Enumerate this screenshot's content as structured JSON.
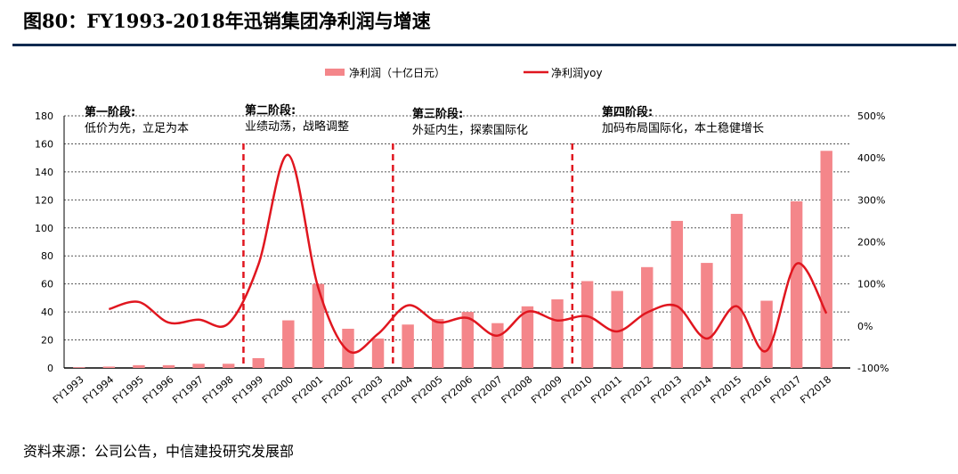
{
  "title": "图80：FY1993-2018年迅销集团净利润与增速",
  "source": "资料来源：公司公告，中信建投研究发展部",
  "colors": {
    "bar": "#f4868a",
    "line": "#e0161f",
    "divider": "#e0161f",
    "rule": "#0f2a4f"
  },
  "chart_data": {
    "type": "bar+line",
    "categories": [
      "FY1993",
      "FY1994",
      "FY1995",
      "FY1996",
      "FY1997",
      "FY1998",
      "FY1999",
      "FY2000",
      "FY2001",
      "FY2002",
      "FY2003",
      "FY2004",
      "FY2005",
      "FY2006",
      "FY2007",
      "FY2008",
      "FY2009",
      "FY2010",
      "FY2011",
      "FY2012",
      "FY2013",
      "FY2014",
      "FY2015",
      "FY2016",
      "FY2017",
      "FY2018"
    ],
    "series": [
      {
        "name": "净利润（十亿日元）",
        "type": "bar",
        "axis": "left",
        "values": [
          0.5,
          1,
          2,
          2,
          3,
          3,
          7,
          34,
          60,
          28,
          21,
          31,
          35,
          40,
          32,
          44,
          49,
          62,
          55,
          72,
          105,
          75,
          110,
          48,
          119,
          155
        ]
      },
      {
        "name": "净利润yoy",
        "type": "line",
        "axis": "right",
        "unit": "%",
        "values": [
          null,
          40,
          57,
          8,
          15,
          6,
          146,
          407,
          91,
          -59,
          -19,
          49,
          9,
          19,
          -23,
          34,
          13,
          23,
          -13,
          32,
          47,
          -30,
          47,
          -59,
          148,
          30
        ]
      }
    ],
    "y_left": {
      "range": [
        0,
        180
      ],
      "ticks": [
        0,
        20,
        40,
        60,
        80,
        100,
        120,
        140,
        160,
        180
      ]
    },
    "y_right": {
      "range": [
        -100,
        500
      ],
      "ticks": [
        "-100%",
        "0%",
        "100%",
        "200%",
        "300%",
        "400%",
        "500%"
      ]
    },
    "grid": true,
    "legend_position": "top-right",
    "phase_dividers_after": [
      "FY1998",
      "FY2003",
      "FY2009"
    ],
    "phases": [
      {
        "title": "第一阶段:",
        "desc": "低价为先，立足为本"
      },
      {
        "title": "第二阶段:",
        "desc": "业绩动荡，战略调整"
      },
      {
        "title": "第三阶段:",
        "desc": "外延内生，探索国际化"
      },
      {
        "title": "第四阶段:",
        "desc": "加码布局国际化，本土稳健增长"
      }
    ]
  }
}
